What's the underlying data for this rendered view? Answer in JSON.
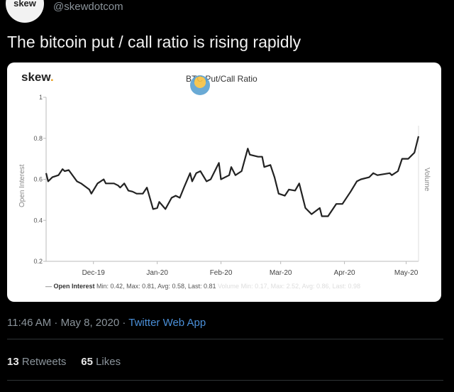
{
  "tweet": {
    "avatar_text": "skew",
    "handle": "@skewdotcom",
    "text": "The bitcoin put / call ratio is rising rapidly",
    "time": "11:46 AM",
    "date": "May 8, 2020",
    "source": "Twitter Web App",
    "retweets": "13",
    "retweets_label": "Retweets",
    "likes": "65",
    "likes_label": "Likes"
  },
  "card": {
    "logo": "skew",
    "logo_dot": "."
  },
  "chart_data": {
    "type": "line",
    "title": "BTC Put/Call Ratio",
    "ylabel": "Open Interest",
    "ylabel_right": "Volume",
    "ylim": [
      0.2,
      1.0
    ],
    "yticks": [
      "0.2",
      "0.4",
      "0.6",
      "0.8",
      "1"
    ],
    "xlim_days": [
      0,
      181
    ],
    "xticks": [
      {
        "label": "Dec-19",
        "day": 23
      },
      {
        "label": "Jan-20",
        "day": 54
      },
      {
        "label": "Feb-20",
        "day": 85
      },
      {
        "label": "Mar-20",
        "day": 114
      },
      {
        "label": "Apr-20",
        "day": 145
      },
      {
        "label": "May-20",
        "day": 175
      }
    ],
    "series": [
      {
        "name": "Open Interest",
        "color": "#222222",
        "x_days": [
          0,
          1,
          3,
          6,
          8,
          9,
          11,
          15,
          17,
          21,
          22,
          25,
          28,
          29,
          33,
          35,
          36,
          38,
          40,
          42,
          44,
          47,
          49,
          51,
          52,
          54,
          55,
          58,
          61,
          63,
          65,
          67,
          70,
          71,
          73,
          75,
          78,
          80,
          84,
          85,
          89,
          90,
          92,
          95,
          98,
          99,
          103,
          105,
          106,
          109,
          111,
          113,
          116,
          118,
          121,
          123,
          126,
          129,
          133,
          134,
          137,
          141,
          144,
          148,
          151,
          153,
          157,
          159,
          161,
          167,
          168,
          171,
          173,
          176,
          178,
          179,
          181
        ],
        "values": [
          0.63,
          0.59,
          0.61,
          0.62,
          0.65,
          0.64,
          0.645,
          0.59,
          0.58,
          0.55,
          0.53,
          0.58,
          0.6,
          0.58,
          0.58,
          0.57,
          0.56,
          0.58,
          0.545,
          0.54,
          0.53,
          0.53,
          0.56,
          0.49,
          0.455,
          0.46,
          0.49,
          0.455,
          0.51,
          0.52,
          0.51,
          0.56,
          0.63,
          0.59,
          0.63,
          0.64,
          0.59,
          0.6,
          0.68,
          0.6,
          0.62,
          0.66,
          0.62,
          0.64,
          0.75,
          0.72,
          0.71,
          0.71,
          0.66,
          0.67,
          0.61,
          0.53,
          0.52,
          0.55,
          0.545,
          0.58,
          0.46,
          0.43,
          0.46,
          0.42,
          0.42,
          0.48,
          0.48,
          0.54,
          0.59,
          0.6,
          0.61,
          0.63,
          0.62,
          0.63,
          0.62,
          0.64,
          0.7,
          0.7,
          0.72,
          0.73,
          0.81
        ]
      }
    ],
    "legend": {
      "placement": "bottom",
      "open_interest_label": "Open Interest",
      "open_interest_stats": "Min: 0.42, Max: 0.81, Avg: 0.58, Last: 0.81",
      "volume_label": "Volume",
      "volume_stats": "Min: 0.17, Max: 2.52, Avg: 0.86, Last: 0.98"
    }
  }
}
